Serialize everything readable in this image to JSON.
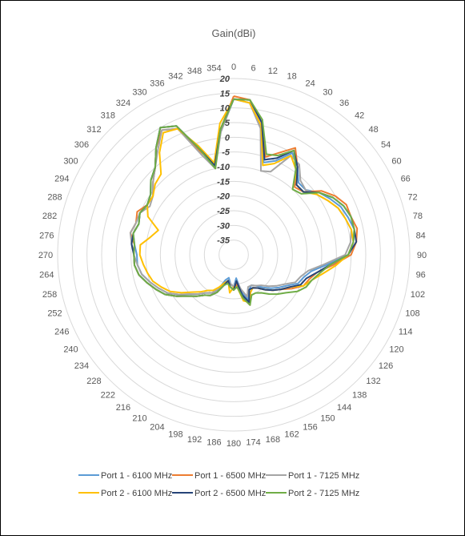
{
  "chart_data": {
    "type": "radar",
    "title": "Gain(dBi)",
    "angular_ticks": [
      "0",
      "6",
      "12",
      "18",
      "24",
      "30",
      "36",
      "42",
      "48",
      "54",
      "60",
      "66",
      "72",
      "78",
      "84",
      "90",
      "96",
      "102",
      "108",
      "114",
      "120",
      "126",
      "132",
      "138",
      "144",
      "150",
      "156",
      "162",
      "168",
      "174",
      "180",
      "186",
      "192",
      "198",
      "204",
      "210",
      "216",
      "222",
      "228",
      "234",
      "240",
      "246",
      "252",
      "258",
      "264",
      "270",
      "276",
      "282",
      "288",
      "294",
      "300",
      "306",
      "312",
      "318",
      "324",
      "330",
      "336",
      "342",
      "348",
      "354"
    ],
    "angles": [
      0,
      6,
      12,
      18,
      24,
      30,
      36,
      42,
      48,
      54,
      60,
      66,
      72,
      78,
      84,
      90,
      96,
      102,
      108,
      114,
      120,
      126,
      132,
      138,
      144,
      150,
      156,
      162,
      168,
      174,
      180,
      186,
      192,
      198,
      204,
      210,
      216,
      222,
      228,
      234,
      240,
      246,
      252,
      258,
      264,
      270,
      276,
      282,
      288,
      294,
      300,
      306,
      312,
      318,
      324,
      330,
      336,
      342,
      348,
      354
    ],
    "radial_ticks": [
      "20",
      "15",
      "10",
      "5",
      "0",
      "-5",
      "-10",
      "-15",
      "-20",
      "-25",
      "-30",
      "-35"
    ],
    "rlim": [
      -40,
      20
    ],
    "legend_position": "bottom",
    "grid": true,
    "series": [
      {
        "name": "Port 1 - 6100 MHz",
        "color": "#5b9bd5",
        "values": [
          13,
          12,
          5,
          -7,
          -5,
          0,
          -3,
          -7,
          -7,
          -4,
          -2,
          0,
          1,
          2,
          1,
          -1,
          -8,
          -13,
          -15,
          -16,
          -19,
          -21,
          -23,
          -25,
          -27,
          -28,
          -27,
          -24,
          -27,
          -32,
          -29,
          -30,
          -32,
          -31,
          -27,
          -25,
          -24,
          -22,
          -20,
          -17,
          -14,
          -12,
          -10,
          -8,
          -7,
          -7,
          -6,
          -5,
          -6,
          -5,
          -6,
          -5,
          -2,
          0,
          5,
          10,
          8,
          -2,
          -9,
          2
        ]
      },
      {
        "name": "Port 1 - 6500 MHz",
        "color": "#ed7d31",
        "values": [
          14,
          13,
          6,
          -5,
          -2,
          2,
          -3,
          -9,
          -8,
          -3,
          0,
          2,
          2,
          3,
          2,
          0,
          -6,
          -11,
          -13,
          -14,
          -17,
          -20,
          -22,
          -24,
          -26,
          -27,
          -26,
          -22,
          -25,
          -30,
          -28,
          -29,
          -31,
          -29,
          -26,
          -24,
          -23,
          -21,
          -19,
          -16,
          -13,
          -11,
          -9,
          -7,
          -6,
          -6,
          -6,
          -4,
          -5,
          -4,
          -6,
          -6,
          -3,
          0,
          5,
          9,
          7,
          -3,
          -8,
          3
        ]
      },
      {
        "name": "Port 1 - 7125 MHz",
        "color": "#a5a5a5",
        "values": [
          13,
          12,
          4,
          -10,
          -9,
          -1,
          -2,
          -6,
          -7,
          -5,
          -3,
          -1,
          0,
          1,
          0,
          -2,
          -9,
          -14,
          -16,
          -17,
          -20,
          -22,
          -24,
          -26,
          -27,
          -28,
          -28,
          -25,
          -28,
          -31,
          -29,
          -30,
          -31,
          -30,
          -27,
          -25,
          -24,
          -22,
          -20,
          -17,
          -14,
          -12,
          -10,
          -8,
          -7,
          -6,
          -5,
          -4,
          -5,
          -5,
          -7,
          -6,
          -3,
          0,
          4,
          9,
          7,
          -4,
          -10,
          2
        ]
      },
      {
        "name": "Port 2 - 6100 MHz",
        "color": "#ffc000",
        "values": [
          13,
          12,
          5,
          -8,
          -6,
          -1,
          -4,
          -8,
          -8,
          -5,
          -3,
          -1,
          0,
          1,
          1,
          -1,
          -5,
          -9,
          -12,
          -14,
          -18,
          -20,
          -22,
          -24,
          -26,
          -27,
          -26,
          -23,
          -24,
          -29,
          -29,
          -27,
          -31,
          -30,
          -28,
          -26,
          -25,
          -23,
          -21,
          -18,
          -15,
          -13,
          -11,
          -10,
          -9,
          -8,
          -8,
          -11,
          -13,
          -8,
          -6,
          -6,
          -4,
          -3,
          3,
          8,
          7,
          -1,
          -8,
          5
        ]
      },
      {
        "name": "Port 2 - 6500 MHz",
        "color": "#264478",
        "values": [
          13,
          13,
          6,
          -6,
          -4,
          1,
          -3,
          -8,
          -8,
          -4,
          -1,
          1,
          2,
          2,
          2,
          -1,
          -7,
          -11,
          -14,
          -15,
          -18,
          -20,
          -22,
          -24,
          -26,
          -27,
          -27,
          -23,
          -26,
          -31,
          -28,
          -29,
          -31,
          -29,
          -26,
          -24,
          -23,
          -21,
          -19,
          -16,
          -13,
          -11,
          -9,
          -7,
          -6,
          -6,
          -5,
          -5,
          -6,
          -5,
          -6,
          -5,
          -2,
          0,
          5,
          10,
          8,
          -2,
          -9,
          3
        ]
      },
      {
        "name": "Port 2 - 7125 MHz",
        "color": "#70ad47",
        "values": [
          13,
          13,
          7,
          -4,
          -3,
          1,
          -4,
          -10,
          -9,
          -4,
          -1,
          1,
          2,
          2,
          1,
          -1,
          -7,
          -10,
          -12,
          -13,
          -15,
          -18,
          -20,
          -22,
          -24,
          -25,
          -25,
          -22,
          -25,
          -29,
          -28,
          -29,
          -30,
          -29,
          -26,
          -24,
          -23,
          -21,
          -19,
          -16,
          -13,
          -11,
          -9,
          -7,
          -6,
          -6,
          -6,
          -5,
          -6,
          -5,
          -6,
          -5,
          -2,
          0,
          5,
          10,
          8,
          -2,
          -10,
          3
        ]
      }
    ]
  }
}
